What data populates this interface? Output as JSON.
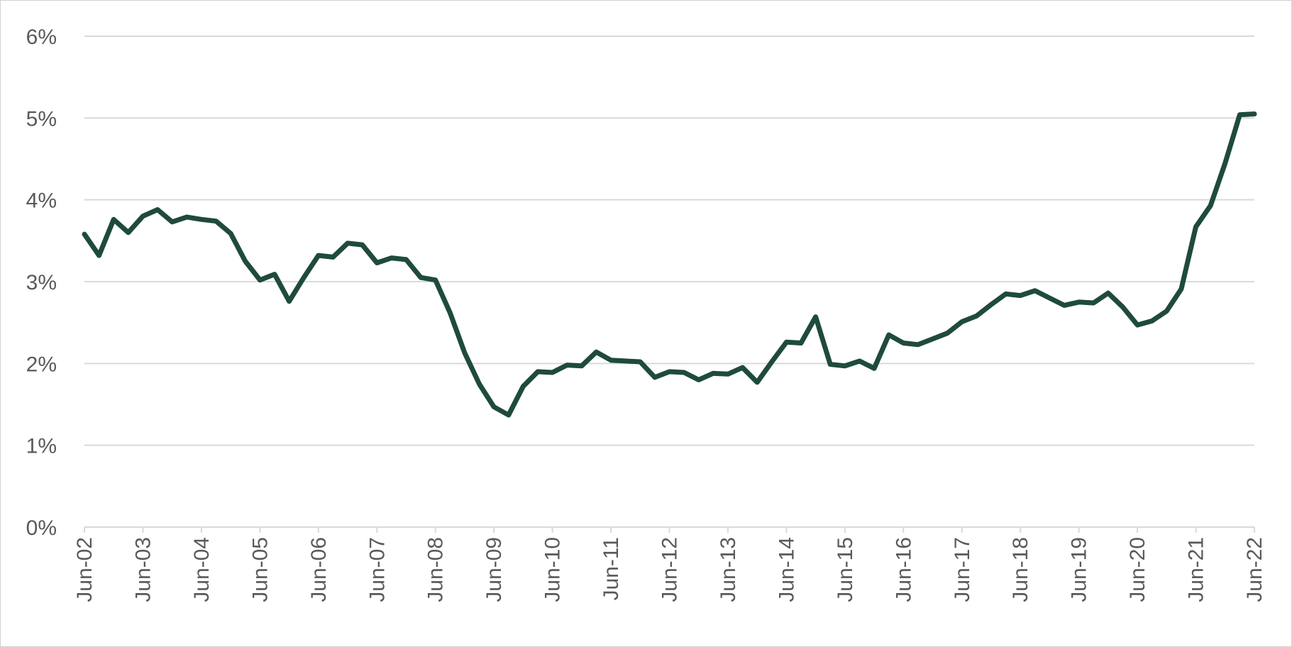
{
  "chart_data": {
    "type": "line",
    "title": "",
    "xlabel": "",
    "ylabel": "",
    "ylim": [
      0,
      6
    ],
    "y_ticks": [
      "0%",
      "1%",
      "2%",
      "3%",
      "4%",
      "5%",
      "6%"
    ],
    "x_ticks": [
      "Jun-02",
      "Jun-03",
      "Jun-04",
      "Jun-05",
      "Jun-06",
      "Jun-07",
      "Jun-08",
      "Jun-09",
      "Jun-10",
      "Jun-11",
      "Jun-12",
      "Jun-13",
      "Jun-14",
      "Jun-15",
      "Jun-16",
      "Jun-17",
      "Jun-18",
      "Jun-19",
      "Jun-20",
      "Jun-21",
      "Jun-22"
    ],
    "grid": true,
    "legend": "none",
    "x_period": "quarterly, Jun-02 to Jun-22",
    "line_color": "#1f4a3e",
    "series": [
      {
        "values": [
          3.58,
          3.32,
          3.76,
          3.6,
          3.8,
          3.88,
          3.73,
          3.79,
          3.76,
          3.74,
          3.59,
          3.25,
          3.02,
          3.09,
          2.76,
          3.05,
          3.32,
          3.3,
          3.47,
          3.45,
          3.23,
          3.29,
          3.27,
          3.05,
          3.02,
          2.62,
          2.13,
          1.75,
          1.47,
          1.37,
          1.72,
          1.9,
          1.89,
          1.98,
          1.97,
          2.14,
          2.04,
          2.03,
          2.02,
          1.83,
          1.9,
          1.89,
          1.8,
          1.88,
          1.87,
          1.95,
          1.77,
          2.02,
          2.26,
          2.25,
          2.57,
          1.99,
          1.97,
          2.03,
          1.94,
          2.35,
          2.25,
          2.23,
          2.3,
          2.37,
          2.51,
          2.58,
          2.72,
          2.85,
          2.83,
          2.89,
          2.8,
          2.71,
          2.75,
          2.74,
          2.86,
          2.69,
          2.47,
          2.52,
          2.64,
          2.91,
          3.67,
          3.93,
          4.45,
          5.04,
          5.05
        ]
      }
    ]
  }
}
